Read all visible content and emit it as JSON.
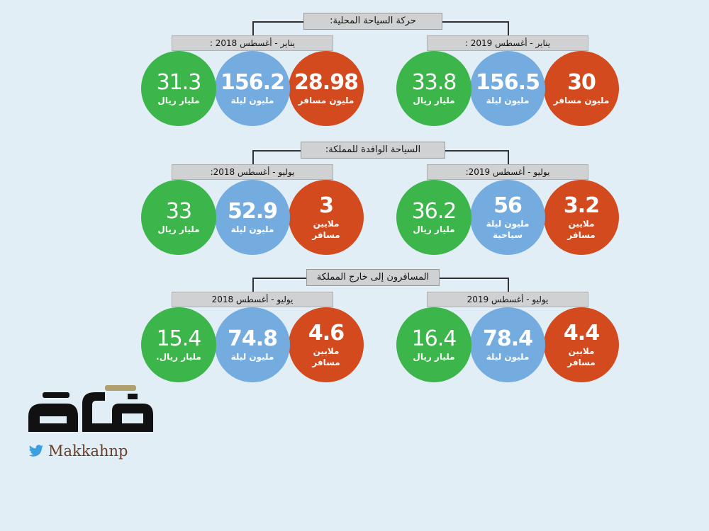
{
  "chart_data": {
    "type": "infographic",
    "sections": [
      {
        "title": "حركة السياحة المحلية:",
        "groups": [
          {
            "period": "يناير - أغسطس 2019 :",
            "metrics": [
              {
                "value": "30",
                "label": "مليون مسافر",
                "color": "#d24a1e"
              },
              {
                "value": "156.5",
                "label": "مليون ليلة",
                "color": "#74ace0"
              },
              {
                "value": "33.8",
                "label": "مليار ريال",
                "color": "#3cb54a"
              }
            ]
          },
          {
            "period": "يناير - أغسطس 2018 :",
            "metrics": [
              {
                "value": "28.98",
                "label": "مليون مسافر",
                "color": "#d24a1e"
              },
              {
                "value": "156.2",
                "label": "مليون ليلة",
                "color": "#74ace0"
              },
              {
                "value": "31.3",
                "label": "مليار ريال",
                "color": "#3cb54a"
              }
            ]
          }
        ]
      },
      {
        "title": "السياحة الوافدة للمملكة:",
        "groups": [
          {
            "period": "يوليو - أغسطس 2019:",
            "metrics": [
              {
                "value": "3.2",
                "label": "ملايين مسافر",
                "color": "#d24a1e"
              },
              {
                "value": "56",
                "label": "مليون ليلة سياحية",
                "color": "#74ace0"
              },
              {
                "value": "36.2",
                "label": "مليار ريال",
                "color": "#3cb54a"
              }
            ]
          },
          {
            "period": "يوليو - أغسطس 2018:",
            "metrics": [
              {
                "value": "3",
                "label": "ملايين مسافر",
                "color": "#d24a1e"
              },
              {
                "value": "52.9",
                "label": "مليون ليلة",
                "color": "#74ace0"
              },
              {
                "value": "33",
                "label": "مليار ريال",
                "color": "#3cb54a"
              }
            ]
          }
        ]
      },
      {
        "title": "المسافرون إلى خارج المملكة",
        "groups": [
          {
            "period": "يوليو - أغسطس 2019",
            "metrics": [
              {
                "value": "4.4",
                "label": "ملايين مسافر",
                "color": "#d24a1e"
              },
              {
                "value": "78.4",
                "label": "مليون ليلة",
                "color": "#74ace0"
              },
              {
                "value": "16.4",
                "label": "مليار ريال",
                "color": "#3cb54a"
              }
            ]
          },
          {
            "period": "يوليو - أغسطس 2018",
            "metrics": [
              {
                "value": "4.6",
                "label": "ملايين مسافر",
                "color": "#d24a1e"
              },
              {
                "value": "74.8",
                "label": "مليون ليلة",
                "color": "#74ace0"
              },
              {
                "value": "15.4",
                "label": "مليار ريال.",
                "color": "#3cb54a"
              }
            ]
          }
        ]
      }
    ]
  },
  "branding": {
    "logo_text": "مكة",
    "handle": "Makkahnp",
    "twitter_color": "#3aa0e0",
    "handle_color": "#6c3c22"
  }
}
